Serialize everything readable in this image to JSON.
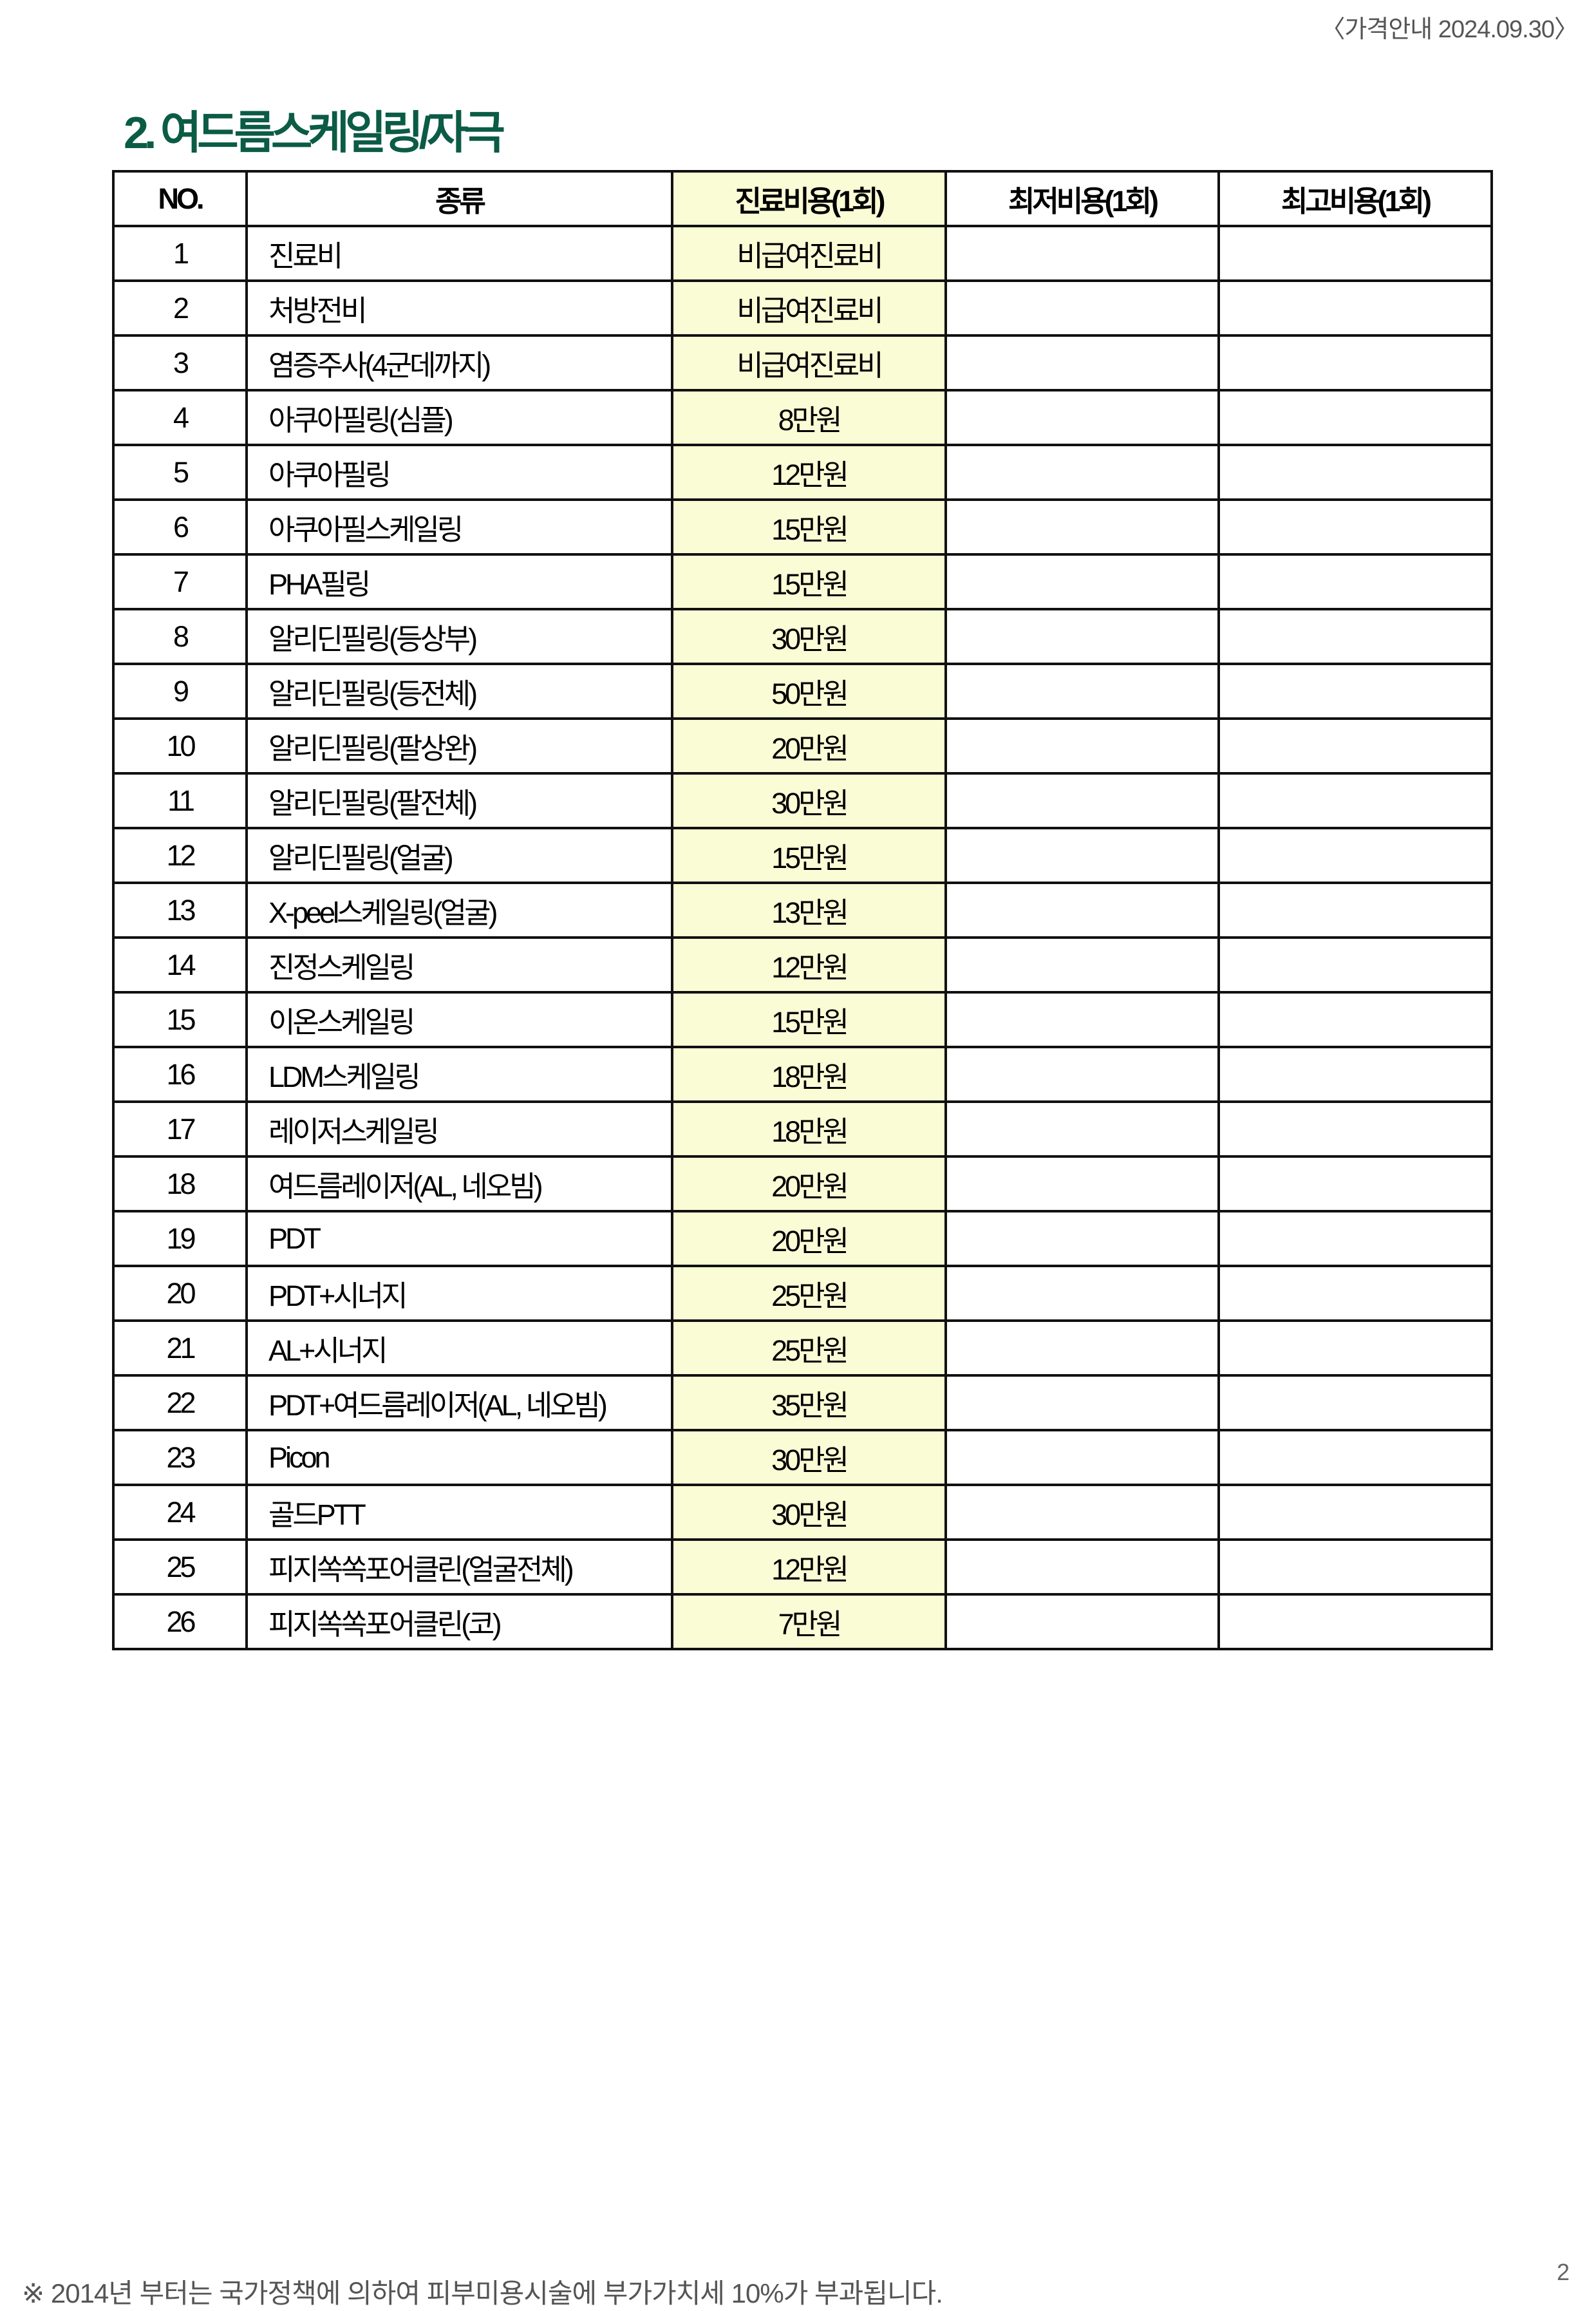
{
  "header": {
    "date_label": "〈가격안내 2024.09.30〉"
  },
  "title": "2. 여드름스케일링/자극",
  "table": {
    "columns": [
      "NO.",
      "종류",
      "진료비용(1회)",
      "최저비용(1회)",
      "최고비용(1회)"
    ],
    "highlight_color": "#fafcd6",
    "rows": [
      {
        "no": "1",
        "kind": "진료비",
        "cost": "비급여진료비",
        "min": "",
        "max": ""
      },
      {
        "no": "2",
        "kind": "처방전비",
        "cost": "비급여진료비",
        "min": "",
        "max": ""
      },
      {
        "no": "3",
        "kind": "염증주사(4군데까지)",
        "cost": "비급여진료비",
        "min": "",
        "max": ""
      },
      {
        "no": "4",
        "kind": "아쿠아필링(심플)",
        "cost": "8만원",
        "min": "",
        "max": ""
      },
      {
        "no": "5",
        "kind": "아쿠아필링",
        "cost": "12만원",
        "min": "",
        "max": ""
      },
      {
        "no": "6",
        "kind": "아쿠아필스케일링",
        "cost": "15만원",
        "min": "",
        "max": ""
      },
      {
        "no": "7",
        "kind": "PHA필링",
        "cost": "15만원",
        "min": "",
        "max": ""
      },
      {
        "no": "8",
        "kind": "알리딘필링(등상부)",
        "cost": "30만원",
        "min": "",
        "max": ""
      },
      {
        "no": "9",
        "kind": "알리딘필링(등전체)",
        "cost": "50만원",
        "min": "",
        "max": ""
      },
      {
        "no": "10",
        "kind": "알리딘필링(팔상완)",
        "cost": "20만원",
        "min": "",
        "max": ""
      },
      {
        "no": "11",
        "kind": "알리딘필링(팔전체)",
        "cost": "30만원",
        "min": "",
        "max": ""
      },
      {
        "no": "12",
        "kind": "알리딘필링(얼굴)",
        "cost": "15만원",
        "min": "",
        "max": ""
      },
      {
        "no": "13",
        "kind": "X-peel스케일링(얼굴)",
        "cost": "13만원",
        "min": "",
        "max": ""
      },
      {
        "no": "14",
        "kind": "진정스케일링",
        "cost": "12만원",
        "min": "",
        "max": ""
      },
      {
        "no": "15",
        "kind": "이온스케일링",
        "cost": "15만원",
        "min": "",
        "max": ""
      },
      {
        "no": "16",
        "kind": "LDM스케일링",
        "cost": "18만원",
        "min": "",
        "max": ""
      },
      {
        "no": "17",
        "kind": "레이저스케일링",
        "cost": "18만원",
        "min": "",
        "max": ""
      },
      {
        "no": "18",
        "kind": "여드름레이저(AL, 네오빔)",
        "cost": "20만원",
        "min": "",
        "max": ""
      },
      {
        "no": "19",
        "kind": "PDT",
        "cost": "20만원",
        "min": "",
        "max": ""
      },
      {
        "no": "20",
        "kind": "PDT+시너지",
        "cost": "25만원",
        "min": "",
        "max": ""
      },
      {
        "no": "21",
        "kind": "AL+시너지",
        "cost": "25만원",
        "min": "",
        "max": ""
      },
      {
        "no": "22",
        "kind": "PDT+여드름레이저(AL, 네오빔)",
        "cost": "35만원",
        "min": "",
        "max": ""
      },
      {
        "no": "23",
        "kind": "Picon",
        "cost": "30만원",
        "min": "",
        "max": ""
      },
      {
        "no": "24",
        "kind": "골드PTT",
        "cost": "30만원",
        "min": "",
        "max": ""
      },
      {
        "no": "25",
        "kind": "피지쏙쏙포어클린(얼굴전체)",
        "cost": "12만원",
        "min": "",
        "max": ""
      },
      {
        "no": "26",
        "kind": "피지쏙쏙포어클린(코)",
        "cost": "7만원",
        "min": "",
        "max": ""
      }
    ]
  },
  "footer": {
    "note": "※ 2014년 부터는 국가정책에 의하여 피부미용시술에 부가가치세 10%가 부과됩니다.",
    "page_number": "2"
  }
}
